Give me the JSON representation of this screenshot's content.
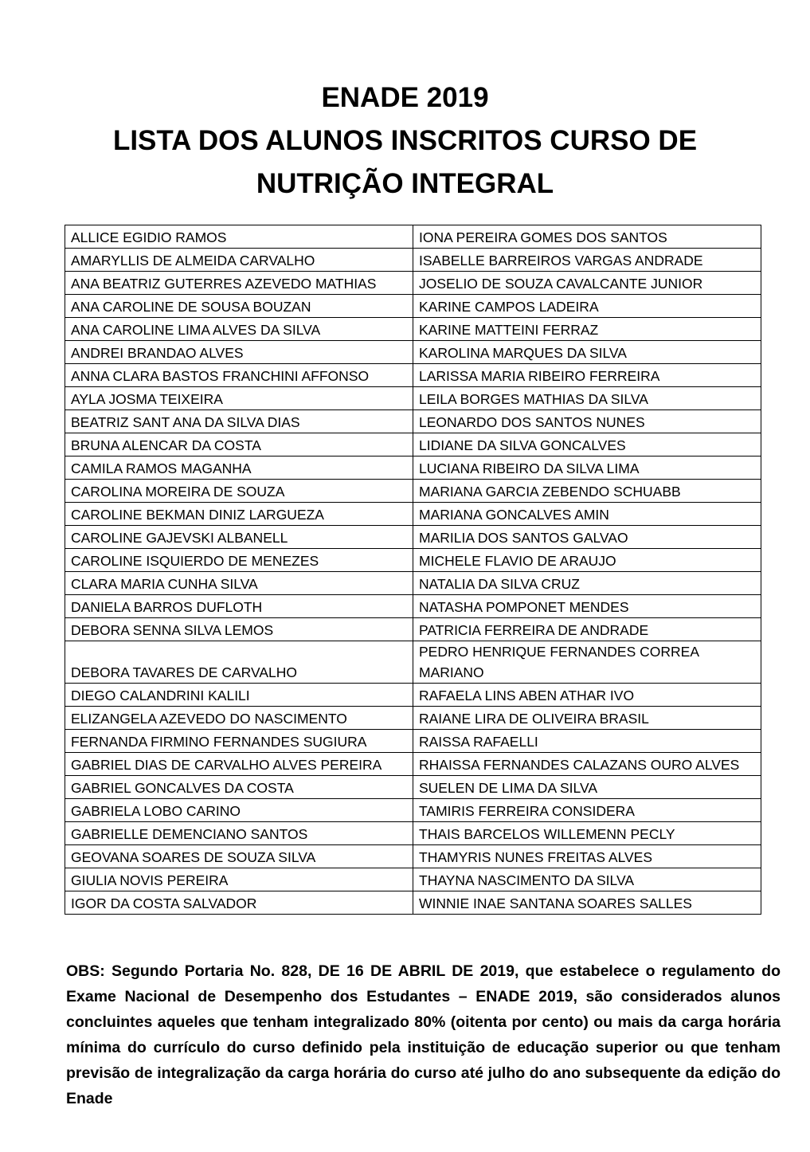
{
  "header": {
    "line1": "ENADE 2019",
    "line2": "LISTA DOS ALUNOS INSCRITOS CURSO DE",
    "line3": "NUTRIÇÃO INTEGRAL"
  },
  "students": {
    "left": [
      "ALLICE EGIDIO RAMOS",
      "AMARYLLIS DE ALMEIDA CARVALHO",
      "ANA BEATRIZ GUTERRES AZEVEDO MATHIAS",
      "ANA CAROLINE DE SOUSA BOUZAN",
      "ANA CAROLINE LIMA ALVES DA SILVA",
      "ANDREI BRANDAO ALVES",
      "ANNA CLARA BASTOS FRANCHINI AFFONSO",
      "AYLA JOSMA TEIXEIRA",
      "BEATRIZ SANT ANA DA SILVA DIAS",
      "BRUNA ALENCAR DA COSTA",
      "CAMILA RAMOS MAGANHA",
      "CAROLINA MOREIRA DE SOUZA",
      "CAROLINE BEKMAN DINIZ LARGUEZA",
      "CAROLINE GAJEVSKI ALBANELL",
      "CAROLINE ISQUIERDO DE MENEZES",
      "CLARA MARIA CUNHA SILVA",
      "DANIELA BARROS DUFLOTH",
      "DEBORA SENNA SILVA LEMOS",
      "DEBORA TAVARES DE CARVALHO",
      "DIEGO CALANDRINI KALILI",
      "ELIZANGELA AZEVEDO DO NASCIMENTO",
      "FERNANDA FIRMINO FERNANDES SUGIURA",
      "GABRIEL DIAS DE CARVALHO ALVES PEREIRA",
      "GABRIEL GONCALVES DA COSTA",
      "GABRIELA LOBO CARINO",
      "GABRIELLE DEMENCIANO SANTOS",
      "GEOVANA SOARES DE SOUZA SILVA",
      "GIULIA NOVIS PEREIRA",
      "IGOR DA COSTA SALVADOR"
    ],
    "right": [
      "IONA PEREIRA GOMES DOS SANTOS",
      "ISABELLE BARREIROS VARGAS ANDRADE",
      "JOSELIO DE SOUZA CAVALCANTE JUNIOR",
      "KARINE CAMPOS LADEIRA",
      "KARINE MATTEINI FERRAZ",
      "KAROLINA MARQUES DA SILVA",
      "LARISSA MARIA RIBEIRO FERREIRA",
      "LEILA BORGES MATHIAS DA SILVA",
      "LEONARDO DOS SANTOS NUNES",
      "LIDIANE DA SILVA GONCALVES",
      "LUCIANA RIBEIRO DA SILVA LIMA",
      "MARIANA GARCIA ZEBENDO SCHUABB",
      "MARIANA GONCALVES AMIN",
      "MARILIA DOS SANTOS GALVAO",
      "MICHELE FLAVIO DE ARAUJO",
      "NATALIA DA SILVA CRUZ",
      "NATASHA POMPONET MENDES",
      "PATRICIA FERREIRA DE ANDRADE",
      "PEDRO HENRIQUE FERNANDES CORREA MARIANO",
      "RAFAELA LINS ABEN ATHAR IVO",
      "RAIANE LIRA DE OLIVEIRA BRASIL",
      "RAISSA RAFAELLI",
      "RHAISSA FERNANDES CALAZANS OURO ALVES",
      "SUELEN DE LIMA DA SILVA",
      "TAMIRIS FERREIRA CONSIDERA",
      "THAIS BARCELOS WILLEMENN PECLY",
      "THAMYRIS NUNES FREITAS ALVES",
      "THAYNA NASCIMENTO DA SILVA",
      "WINNIE INAE SANTANA SOARES SALLES"
    ]
  },
  "note": "OBS: Segundo Portaria No. 828, DE 16 DE ABRIL DE 2019, que estabelece o regulamento do Exame Nacional de Desempenho dos Estudantes – ENADE 2019, são considerados alunos concluintes aqueles que tenham integralizado 80% (oitenta por cento) ou mais da carga horária mínima do currículo do curso definido pela instituição de educação superior ou que tenham previsão de integralização da carga horária do curso até julho do ano subsequente da edição do Enade"
}
